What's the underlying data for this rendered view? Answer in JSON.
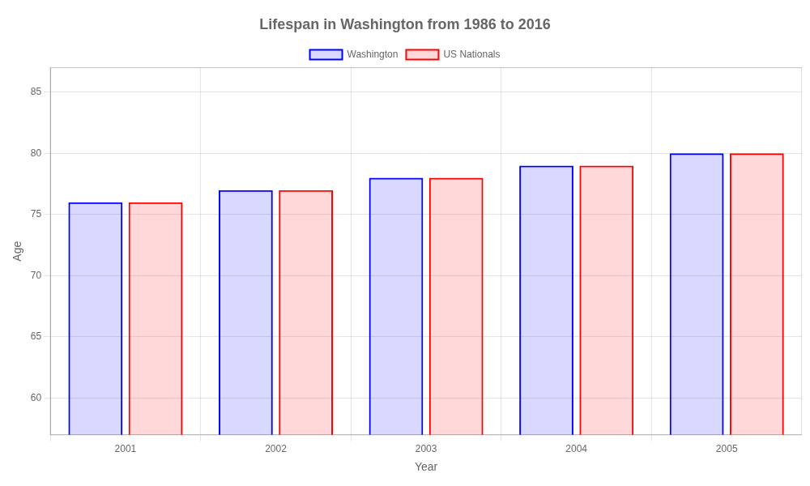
{
  "chart_data": {
    "type": "bar",
    "title": "Lifespan in Washington from 1986 to 2016",
    "x_label": "Year",
    "y_label": "Age",
    "categories": [
      "2001",
      "2002",
      "2003",
      "2004",
      "2005"
    ],
    "series": [
      {
        "name": "Washington",
        "color": "#0000ff",
        "values": [
          76,
          77,
          78,
          79,
          80
        ]
      },
      {
        "name": "US Nationals",
        "color": "#ff0000",
        "values": [
          76,
          77,
          78,
          79,
          80
        ]
      }
    ],
    "ylim": [
      57,
      87
    ],
    "yticks": [
      60,
      65,
      70,
      75,
      80,
      85
    ],
    "grid": true,
    "legend": "top"
  }
}
